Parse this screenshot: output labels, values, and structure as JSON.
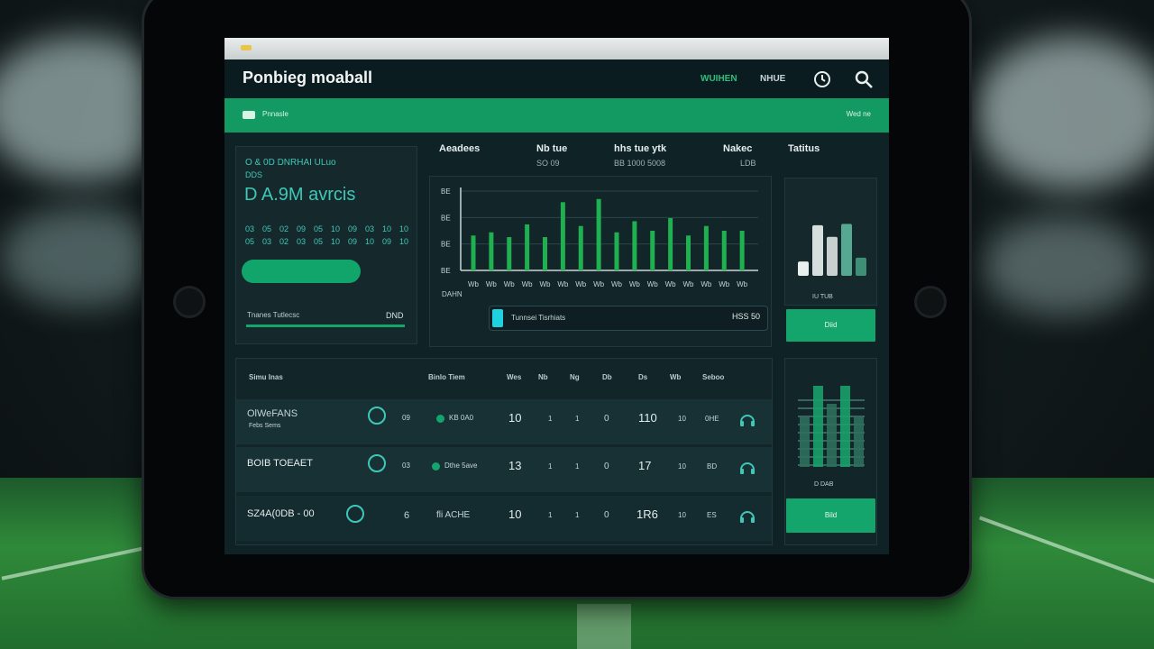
{
  "app": {
    "title": "Ponbieg moaball",
    "nav": [
      "WUIHEN",
      "NHUE"
    ],
    "green_bar": {
      "label": "Pnnasle",
      "right": "Wed ne"
    }
  },
  "summary_card": {
    "title": "O & 0D DNRHAI ULuo",
    "sub": "DDS",
    "metric": "D A.9M avrcis",
    "grid_values": [
      "03",
      "05",
      "02",
      "09",
      "05",
      "10",
      "09",
      "03",
      "10",
      "10",
      "05",
      "03",
      "02",
      "03",
      "05",
      "10",
      "09",
      "10",
      "09",
      "10"
    ],
    "footer_label": "Tnanes Tutlecsc",
    "footer_value": "DND"
  },
  "kpis": [
    {
      "label": "Aeadees",
      "sub": ""
    },
    {
      "label": "Nb tue",
      "sub": "SO 09"
    },
    {
      "label": "hhs tue ytk",
      "sub": "BB 1000 5008"
    },
    {
      "label": "Nakec",
      "sub": "LDB"
    },
    {
      "label": "Tatitus",
      "sub": ""
    }
  ],
  "chart_data": {
    "type": "bar",
    "ytick_labels": [
      "BE",
      "BE",
      "BE",
      "BE"
    ],
    "categories": [
      "Wb",
      "Wb",
      "Wb",
      "Wb",
      "Wb",
      "Wb",
      "Wb",
      "Wb",
      "Wb",
      "Wb",
      "Wb",
      "Wb",
      "Wb",
      "Wb",
      "Wb",
      "Wb"
    ],
    "values": [
      44,
      48,
      42,
      58,
      42,
      86,
      56,
      90,
      48,
      62,
      50,
      66,
      44,
      56,
      50,
      50
    ],
    "ylim": [
      0,
      100
    ],
    "color": "#1fb050",
    "xlabel": "DAHN"
  },
  "slider": {
    "label": "Tunnsei Tisrhiats",
    "value": "HSS 50",
    "level": 0.03
  },
  "side_chart": {
    "bars": [
      0.22,
      0.78,
      0.6,
      0.8,
      0.28
    ],
    "caption": "IU TUB",
    "button": "Diid"
  },
  "table": {
    "title": "Simu Inas",
    "columns": [
      "Binlo Tiem",
      "Wes",
      "Nb",
      "Ng",
      "Db",
      "Ds",
      "Wb",
      "Seboo"
    ],
    "rows": [
      {
        "name": "OlWeFANS",
        "sub": "Febs Sems",
        "mark": "09",
        "team": "KB 0A0",
        "c1": "10",
        "c2": "1",
        "c3": "1",
        "c4": "0",
        "c5": "110",
        "c6": "10",
        "c7": "0HE"
      },
      {
        "name": "BOIB TOEAET",
        "sub": "",
        "mark": "03",
        "team": "Dthe 5ave",
        "c1": "13",
        "c2": "1",
        "c3": "1",
        "c4": "0",
        "c5": "17",
        "c6": "10",
        "c7": "BD"
      },
      {
        "name": "SZ4A(0DB - 00",
        "sub": "",
        "mark": "6",
        "team": "fli ACHE",
        "c1": "10",
        "c2": "1",
        "c3": "1",
        "c4": "0",
        "c5": "1R6",
        "c6": "10",
        "c7": "ES"
      }
    ]
  },
  "eq_panel": {
    "levels": [
      0.55,
      0.9,
      0.7,
      0.9,
      0.55
    ],
    "caption": "D DAB",
    "button": "Bild"
  },
  "colors": {
    "accent": "#13a56b",
    "teal": "#3fc7b8",
    "bar": "#1fb050",
    "panel": "#15292d"
  }
}
